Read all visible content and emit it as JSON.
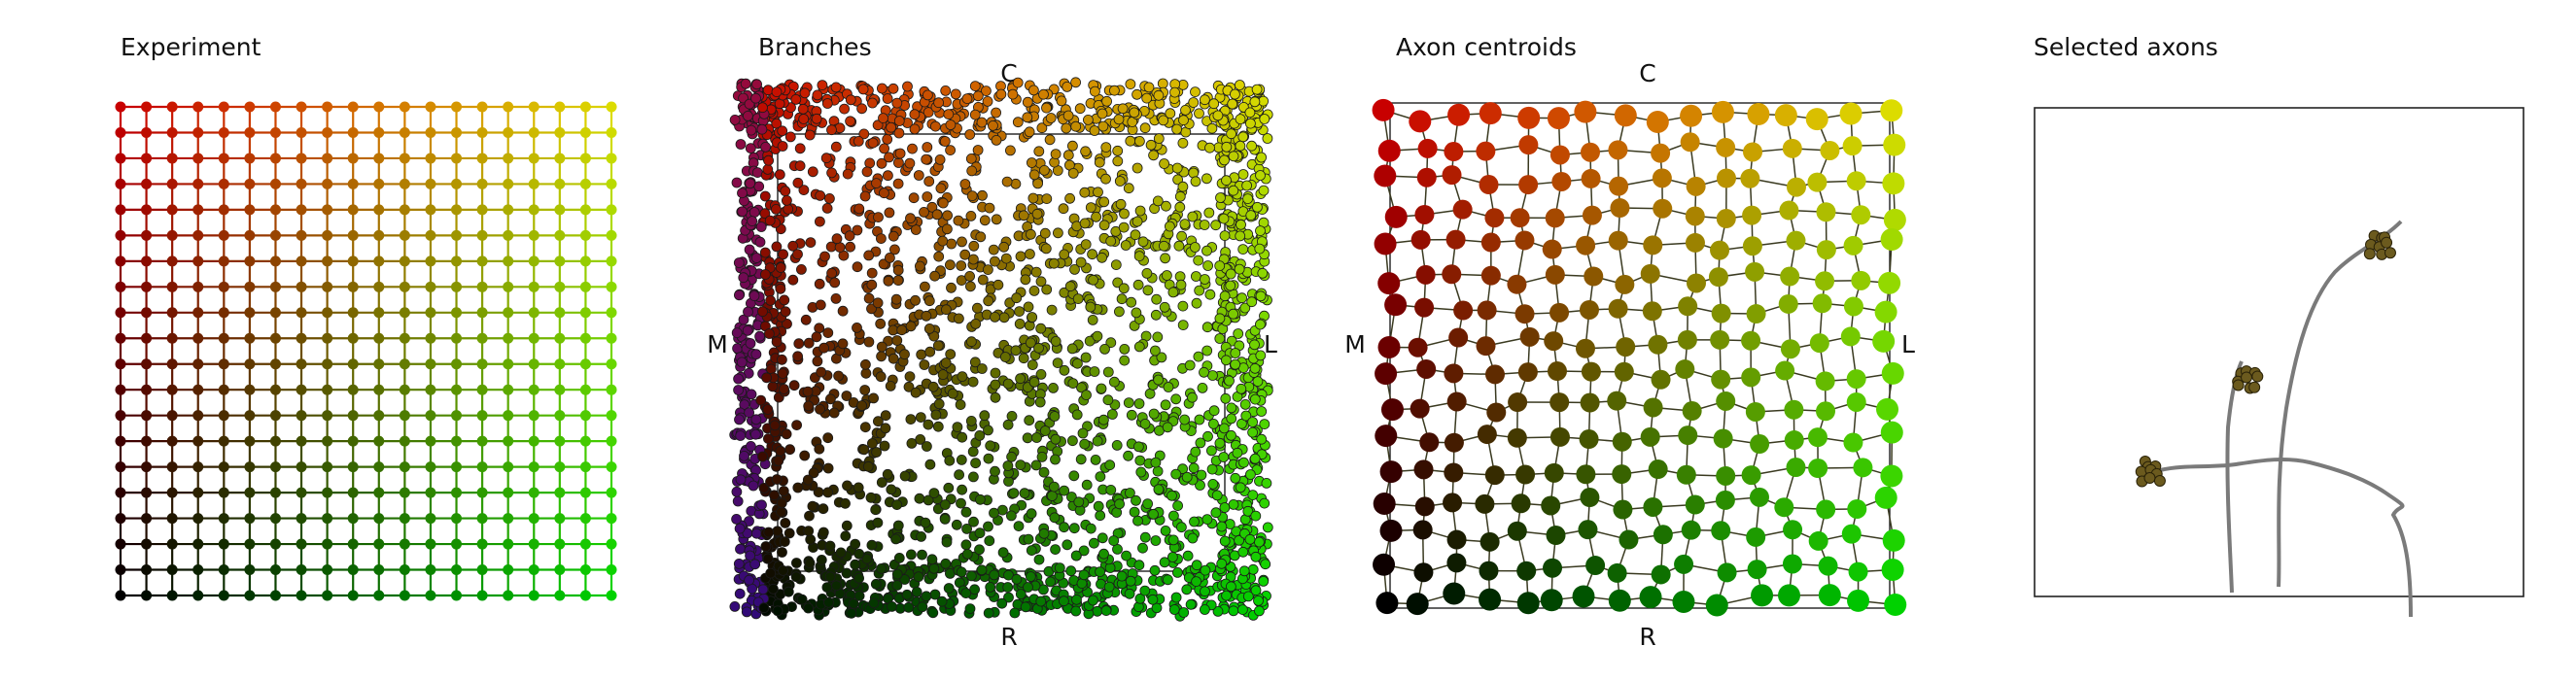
{
  "panels": {
    "experiment": {
      "title": "Experiment"
    },
    "branches": {
      "title": "Branches",
      "labels": {
        "top": "C",
        "left": "M",
        "right": "L",
        "bottom": "R"
      }
    },
    "centroids": {
      "title": "Axon centroids",
      "labels": {
        "top": "C",
        "left": "M",
        "right": "L",
        "bottom": "R"
      }
    },
    "selected": {
      "title": "Selected axons"
    }
  },
  "grid": {
    "columns": 20,
    "rows": 20
  },
  "centroid_grid": {
    "columns": 16,
    "rows": 16
  },
  "colors": {
    "corner_top_left": "#c80000",
    "corner_top_right": "#dcdc00",
    "corner_bottom_left": "#000000",
    "corner_bottom_right": "#00d200",
    "edge_stroke": "#202020",
    "axon_stroke": "#7a7a7a",
    "cluster_fill": "#6b5a1e",
    "frame": "#222222"
  }
}
